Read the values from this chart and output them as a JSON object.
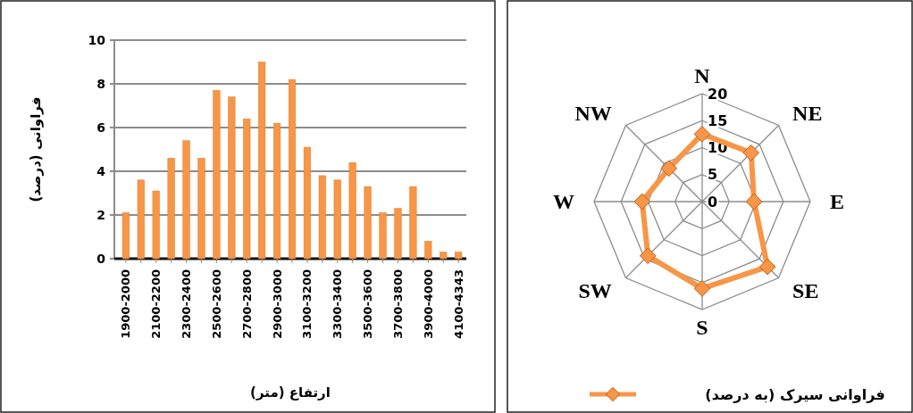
{
  "chart_data": [
    {
      "type": "bar",
      "xlabel": "ارتفاع (متر)",
      "ylabel": "فراوانی (درصد)",
      "categories": [
        "1900-2000",
        null,
        "2100-2200",
        null,
        "2300-2400",
        null,
        "2500-2600",
        null,
        "2700-2800",
        null,
        "2900-3000",
        null,
        "3100-3200",
        null,
        "3300-3400",
        null,
        "3500-3600",
        null,
        "3700-3800",
        null,
        "3900-4000",
        null,
        "4100-4343"
      ],
      "values": [
        2.1,
        3.6,
        3.1,
        4.6,
        5.4,
        4.6,
        7.7,
        7.4,
        6.4,
        9.0,
        6.2,
        8.2,
        5.1,
        3.8,
        3.6,
        4.4,
        3.3,
        2.1,
        2.3,
        3.3,
        0.8,
        0.3,
        0.3
      ],
      "color": "#f79646",
      "ylim": [
        0,
        10
      ],
      "yticks": [
        0,
        2,
        4,
        6,
        8,
        10
      ],
      "grid": "y"
    },
    {
      "type": "radar",
      "categories": [
        "N",
        "NE",
        "E",
        "SE",
        "S",
        "SW",
        "W",
        "NW"
      ],
      "series": [
        {
          "name": "فراوانی سیرک (به درصد)",
          "color": "#f79646",
          "values": [
            12.5,
            12.8,
            9.6,
            17.1,
            16.1,
            14.2,
            11.1,
            8.7
          ]
        }
      ],
      "ylim": [
        0,
        20
      ],
      "yticks": [
        0,
        5,
        10,
        15,
        20
      ],
      "marker": "diamond",
      "legend": "bottom"
    }
  ]
}
